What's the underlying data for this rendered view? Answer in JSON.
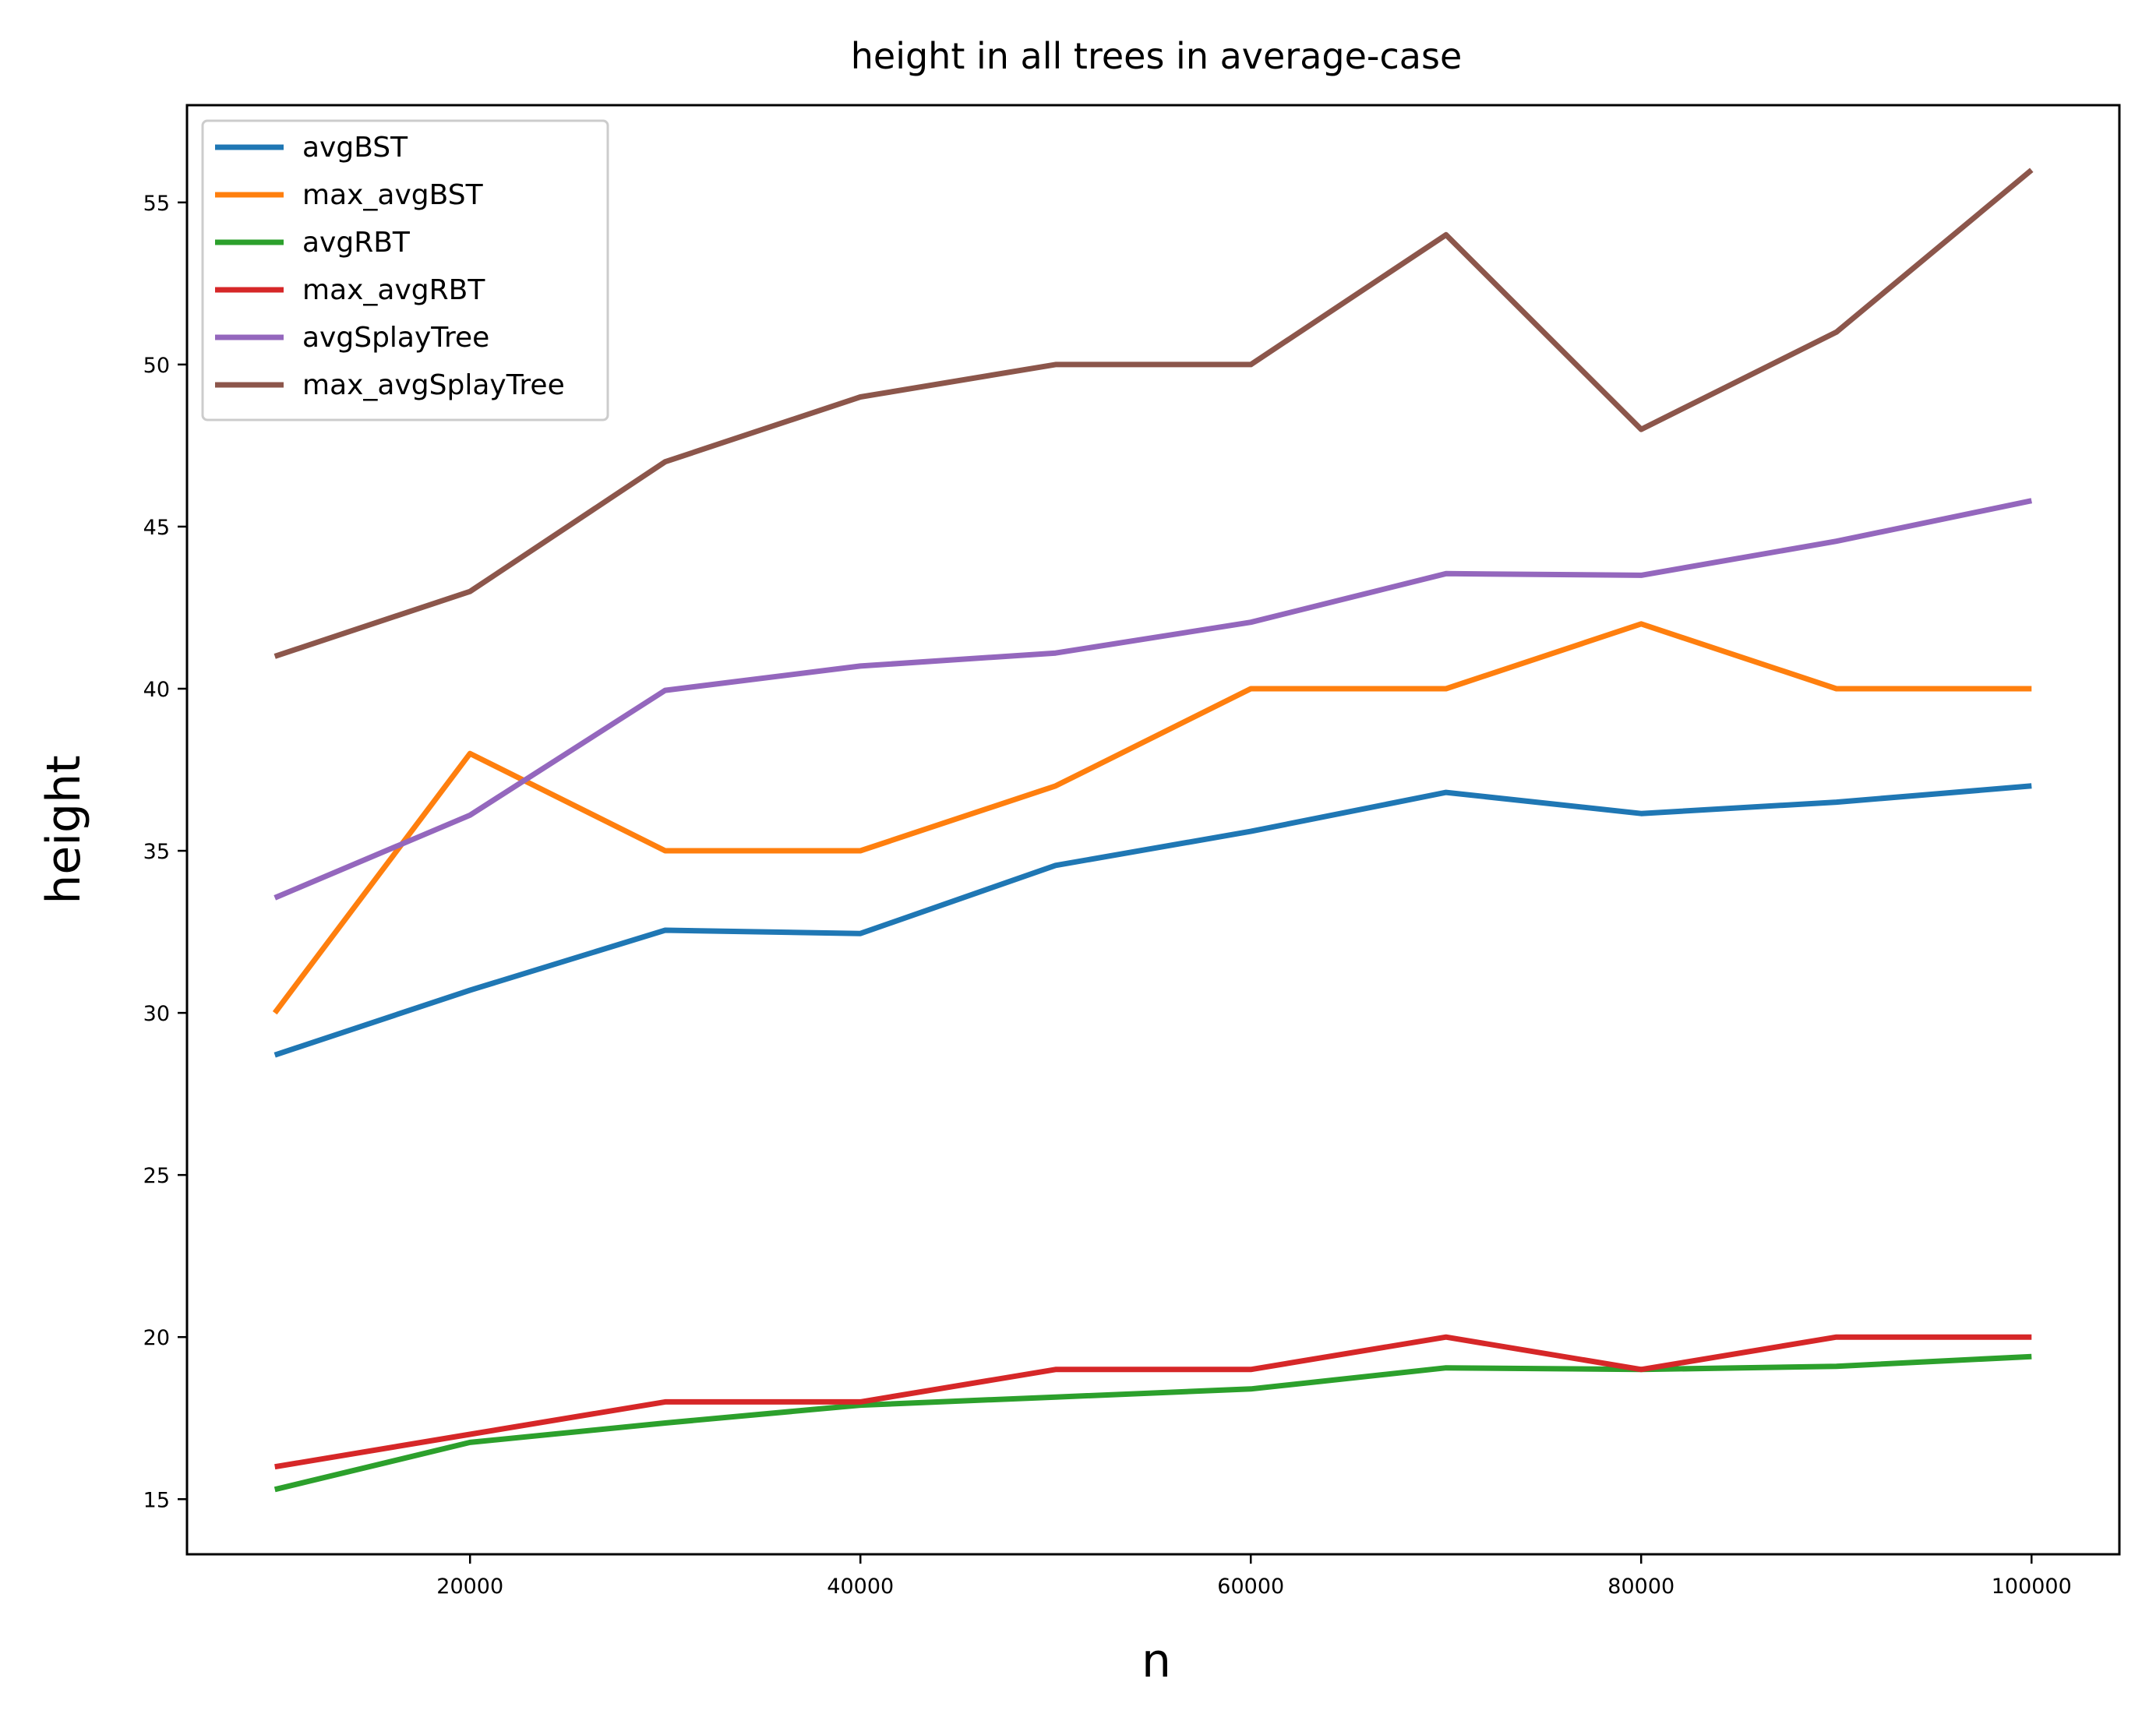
{
  "chart_data": {
    "type": "line",
    "title": "height in all trees in average-case",
    "xlabel": "n",
    "ylabel": "height",
    "xlim": [
      5500,
      104500
    ],
    "ylim": [
      13.3,
      58.0
    ],
    "xticks": [
      20000,
      40000,
      60000,
      80000,
      100000
    ],
    "yticks": [
      15,
      20,
      25,
      30,
      35,
      40,
      45,
      50,
      55
    ],
    "grid": false,
    "legend_position": "top-left",
    "x": [
      10000,
      20000,
      30000,
      40000,
      50000,
      60000,
      70000,
      80000,
      90000,
      100000
    ],
    "series": [
      {
        "name": "avgBST",
        "color": "#1f77b4",
        "values": [
          28.7,
          30.7,
          32.55,
          32.45,
          34.55,
          35.6,
          36.8,
          36.15,
          36.5,
          37.0
        ]
      },
      {
        "name": "max_avgBST",
        "color": "#ff7f0e",
        "values": [
          30,
          38,
          35,
          35,
          37,
          40,
          40,
          42,
          40,
          40
        ]
      },
      {
        "name": "avgRBT",
        "color": "#2ca02c",
        "values": [
          15.3,
          16.75,
          17.35,
          17.9,
          18.15,
          18.4,
          19.05,
          19.0,
          19.1,
          19.4
        ]
      },
      {
        "name": "max_avgRBT",
        "color": "#d62728",
        "values": [
          16,
          17,
          18,
          18,
          19,
          19,
          20,
          19,
          20,
          20
        ]
      },
      {
        "name": "avgSplayTree",
        "color": "#9467bd",
        "values": [
          33.55,
          36.1,
          39.95,
          40.7,
          41.1,
          42.05,
          43.55,
          43.5,
          44.55,
          45.8
        ]
      },
      {
        "name": "max_avgSplayTree",
        "color": "#8c564b",
        "values": [
          41,
          43,
          47,
          49,
          50,
          50,
          54,
          48,
          51,
          56
        ]
      }
    ]
  }
}
